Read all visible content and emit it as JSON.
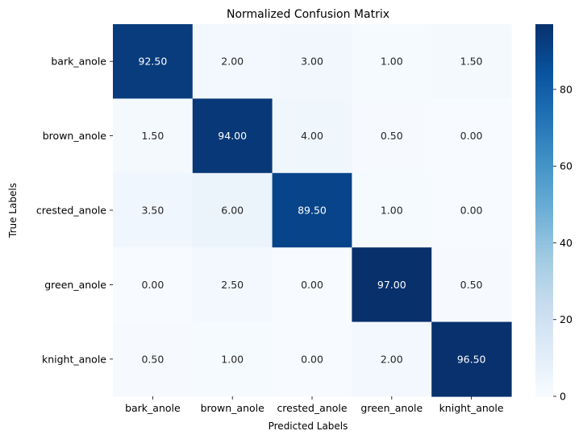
{
  "chart_data": {
    "type": "heatmap",
    "title": "Normalized Confusion Matrix",
    "xlabel": "Predicted Labels",
    "ylabel": "True Labels",
    "x_categories": [
      "bark_anole",
      "brown_anole",
      "crested_anole",
      "green_anole",
      "knight_anole"
    ],
    "y_categories": [
      "bark_anole",
      "brown_anole",
      "crested_anole",
      "green_anole",
      "knight_anole"
    ],
    "values": [
      [
        92.5,
        2.0,
        3.0,
        1.0,
        1.5
      ],
      [
        1.5,
        94.0,
        4.0,
        0.5,
        0.0
      ],
      [
        3.5,
        6.0,
        89.5,
        1.0,
        0.0
      ],
      [
        0.0,
        2.5,
        0.0,
        97.0,
        0.5
      ],
      [
        0.5,
        1.0,
        0.0,
        2.0,
        96.5
      ]
    ],
    "value_format": "2 decimals",
    "colormap": "Blues",
    "colorbar": {
      "range": [
        0,
        97
      ],
      "ticks": [
        0,
        20,
        40,
        60,
        80
      ]
    },
    "grid": false,
    "annotations": true
  }
}
